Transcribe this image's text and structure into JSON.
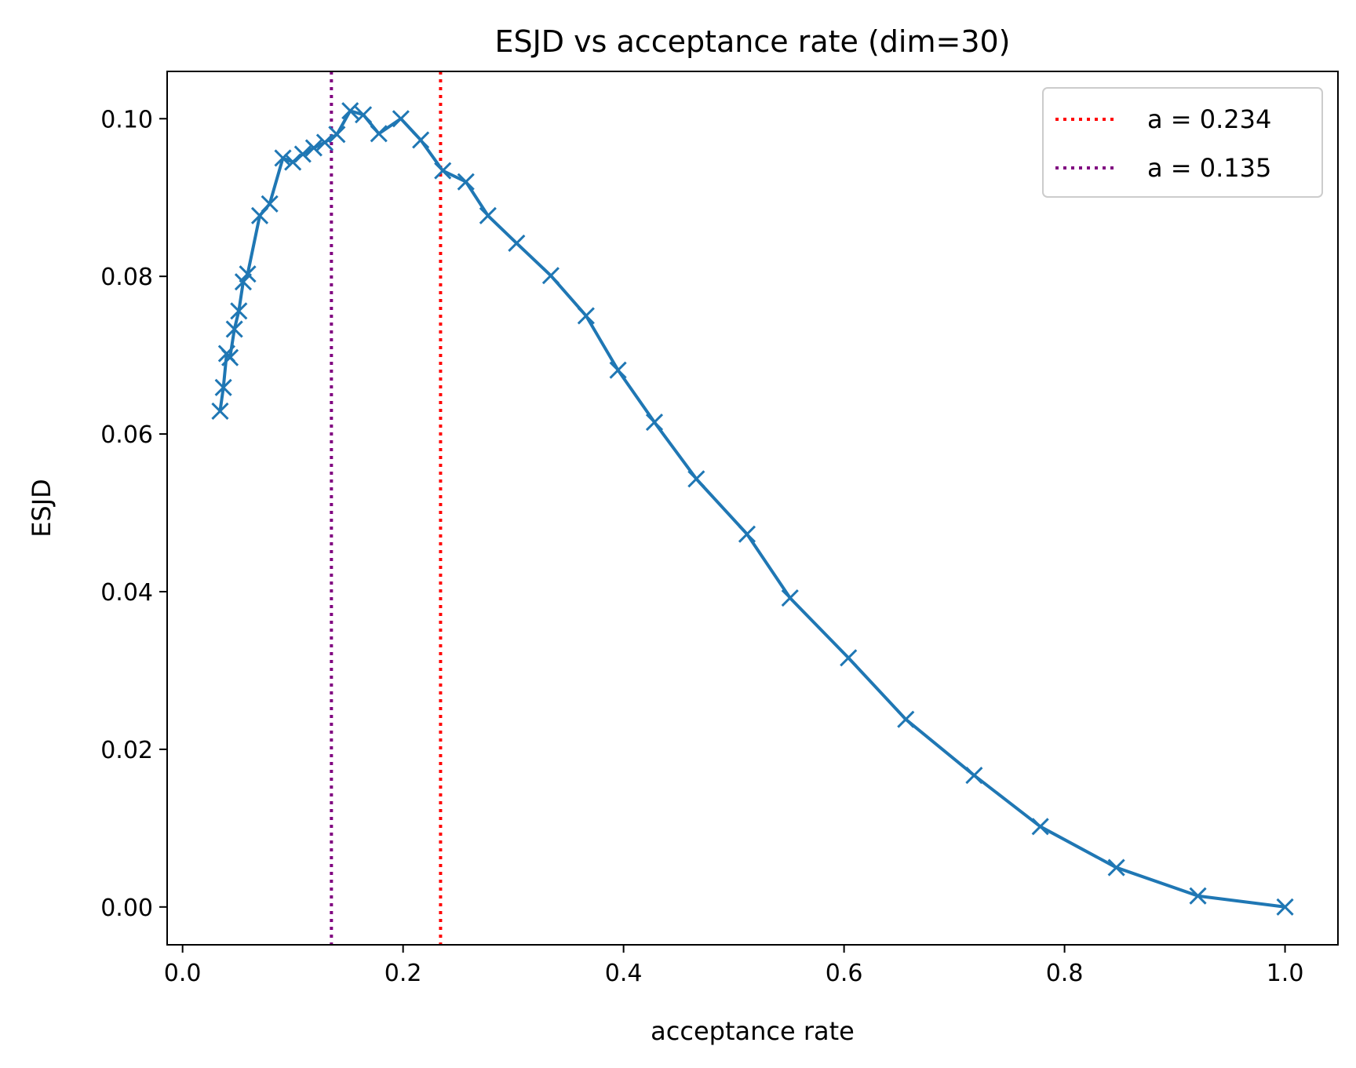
{
  "chart_data": {
    "type": "line",
    "title": "ESJD vs acceptance rate (dim=30)",
    "xlabel": "acceptance rate",
    "ylabel": "ESJD",
    "xlim": [
      -0.014,
      1.048
    ],
    "ylim": [
      -0.0048,
      0.106
    ],
    "xticks": [
      "0.0",
      "0.2",
      "0.4",
      "0.6",
      "0.8",
      "1.0"
    ],
    "yticks": [
      "0.00",
      "0.02",
      "0.04",
      "0.06",
      "0.08",
      "0.10"
    ],
    "grid": false,
    "legend_position": "top-right",
    "series": [
      {
        "marker": "x",
        "color": "#1f77b4",
        "x": [
          0.034,
          0.037,
          0.04,
          0.043,
          0.047,
          0.051,
          0.055,
          0.059,
          0.07,
          0.079,
          0.091,
          0.1,
          0.109,
          0.119,
          0.129,
          0.14,
          0.152,
          0.164,
          0.178,
          0.198,
          0.216,
          0.236,
          0.257,
          0.277,
          0.303,
          0.334,
          0.366,
          0.395,
          0.428,
          0.466,
          0.512,
          0.551,
          0.604,
          0.656,
          0.718,
          0.778,
          0.847,
          0.921,
          1.0
        ],
        "y": [
          0.0629,
          0.0659,
          0.0702,
          0.0697,
          0.0733,
          0.0756,
          0.0793,
          0.0803,
          0.0877,
          0.0892,
          0.095,
          0.0945,
          0.0955,
          0.0963,
          0.097,
          0.098,
          0.101,
          0.1005,
          0.0981,
          0.1,
          0.0973,
          0.0934,
          0.092,
          0.0877,
          0.0842,
          0.0801,
          0.075,
          0.0681,
          0.0615,
          0.0543,
          0.0473,
          0.0392,
          0.0316,
          0.0238,
          0.0167,
          0.0102,
          0.005,
          0.0014,
          0.0
        ]
      }
    ],
    "vlines": [
      {
        "label": "a = 0.234",
        "x": 0.234,
        "color": "#ff0000"
      },
      {
        "label": "a = 0.135",
        "x": 0.135,
        "color": "#800080"
      }
    ]
  }
}
